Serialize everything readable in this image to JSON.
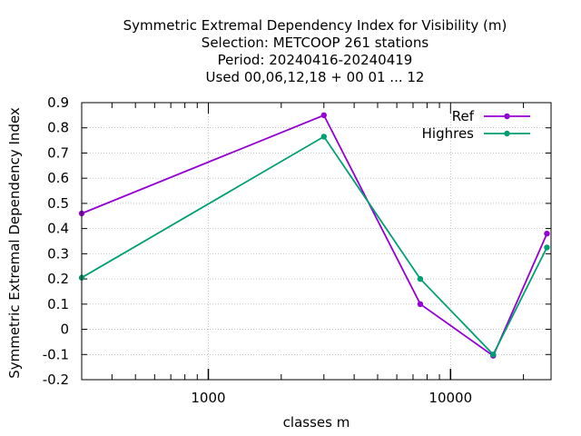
{
  "chart_data": {
    "type": "line",
    "title_lines": [
      "Symmetric Extremal Dependency Index  for Visibility (m)",
      "Selection: METCOOP    261 stations",
      "Period: 20240416-20240419",
      "Used  00,06,12,18 + 00 01 ... 12"
    ],
    "xlabel": "classes m",
    "ylabel": "Symmetric Extremal Dependency Index",
    "xscale": "log",
    "xlim": [
      300,
      26000
    ],
    "ylim": [
      -0.2,
      0.9
    ],
    "x_ticks": [
      1000,
      10000
    ],
    "x_tick_labels": [
      "1000",
      "10000"
    ],
    "y_ticks": [
      -0.2,
      -0.1,
      0,
      0.1,
      0.2,
      0.3,
      0.4,
      0.5,
      0.6,
      0.7,
      0.8,
      0.9
    ],
    "y_tick_labels": [
      "-0.2",
      "-0.1",
      "0",
      "0.1",
      "0.2",
      "0.3",
      "0.4",
      "0.5",
      "0.6",
      "0.7",
      "0.8",
      "0.9"
    ],
    "grid": true,
    "legend_position": "top-right",
    "x": [
      300,
      3000,
      7500,
      15000,
      25000
    ],
    "series": [
      {
        "name": "Ref",
        "color": "#9400d3",
        "values": [
          0.46,
          0.85,
          0.1,
          -0.105,
          0.38
        ]
      },
      {
        "name": "Highres",
        "color": "#009e73",
        "values": [
          0.205,
          0.765,
          0.2,
          -0.1,
          0.325
        ]
      }
    ]
  }
}
